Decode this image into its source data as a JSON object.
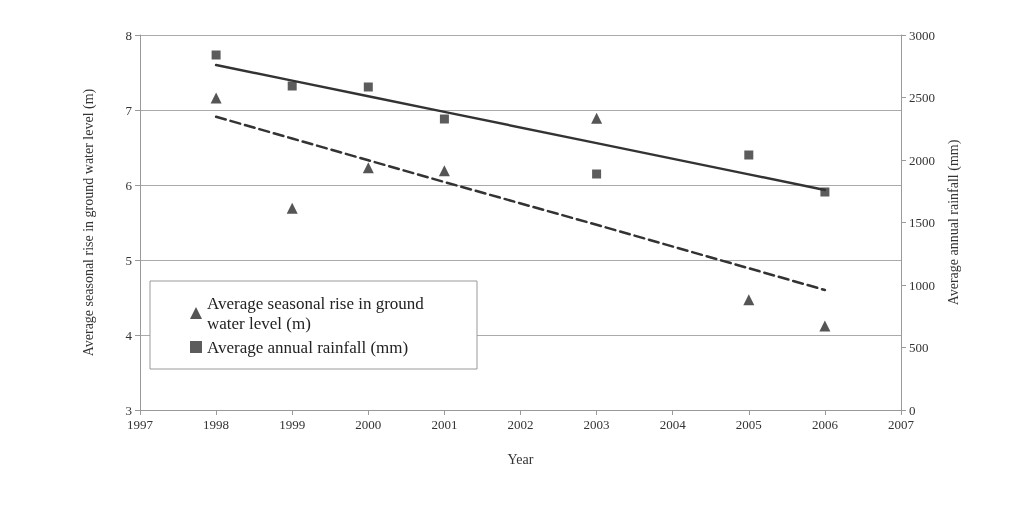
{
  "chart_data": {
    "type": "scatter",
    "xlabel": "Year",
    "ylabel": "Average seasonal rise in ground water level (m)",
    "y2label": "Average annual rainfall (mm)",
    "x": [
      1998,
      1999,
      2000,
      2001,
      2003,
      2005,
      2006
    ],
    "series": [
      {
        "name": "Average seasonal rise in ground water level (m)",
        "color": "#2b2b2b",
        "marker": "triangle",
        "values": [
          7.16,
          5.69,
          6.23,
          6.19,
          6.89,
          4.47,
          4.12
        ]
      },
      {
        "name": "Average annual rainfall (mm)",
        "color": "#333333",
        "marker": "square",
        "axis": "y2",
        "values": [
          2840,
          2592,
          2584,
          2328,
          1888,
          2040,
          1744
        ]
      },
      {
        "type": "line",
        "color": "#333333",
        "line_style": "dashed",
        "marker": "none",
        "values": [
          6.91,
          6.62,
          6.33,
          6.04,
          5.47,
          4.89,
          4.6
        ]
      },
      {
        "type": "line",
        "color": "#333333",
        "line_style": "solid",
        "marker": "none",
        "axis": "y2",
        "values": [
          2760,
          2635,
          2510,
          2385,
          2135,
          1885,
          1760
        ]
      }
    ],
    "xlim": [
      1997,
      2007
    ],
    "xticks": [
      1997,
      1998,
      1999,
      2000,
      2001,
      2002,
      2003,
      2004,
      2005,
      2006,
      2007
    ],
    "ylim": [
      3,
      8
    ],
    "yticks": [
      3,
      4,
      5,
      6,
      7,
      8
    ],
    "y2lim": [
      0,
      3000
    ],
    "y2ticks": [
      0,
      500,
      1000,
      1500,
      2000,
      2500,
      3000
    ],
    "grid": "y",
    "legend": "bottom left"
  }
}
